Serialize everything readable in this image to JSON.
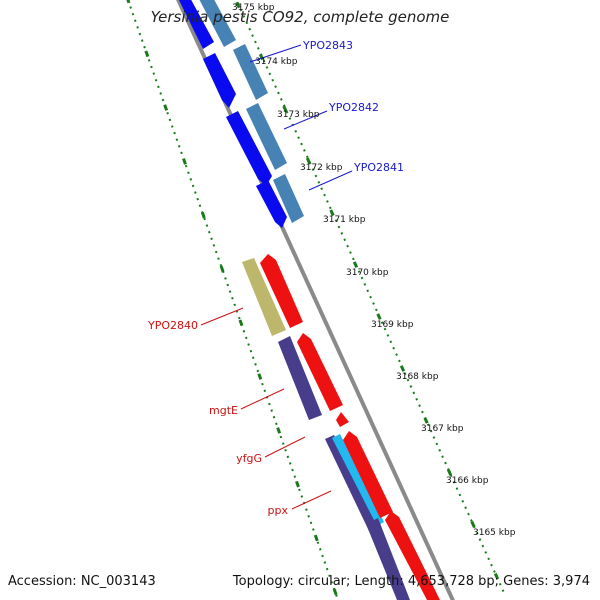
{
  "title": "Yersinia pestis CO92, complete genome",
  "accession": "Accession: NC_003143",
  "summary": "Topology: circular; Length: 4,653,728 bp; Genes: 3,974",
  "colors": {
    "backbone": "#8a8a8a",
    "tick_marks": "#1a7a1a",
    "forward_cds_blue": "#0a0af0",
    "forward_gene_steel": "#4682b4",
    "reverse_cds_red": "#ee1111",
    "reverse_gene_olive": "#bdb76b",
    "reverse_gene_slate": "#483d8b",
    "reverse_gene_cyan": "#22b8f0",
    "label_blue": "#1818cc",
    "label_red": "#cc1111"
  },
  "tick_labels": [
    "3175 kbp",
    "3174 kbp",
    "3173 kbp",
    "3172 kbp",
    "3171 kbp",
    "3170 kbp",
    "3169 kbp",
    "3168 kbp",
    "3167 kbp",
    "3166 kbp",
    "3165 kbp"
  ],
  "gene_labels_forward": [
    "YPO2843",
    "YPO2842",
    "YPO2841"
  ],
  "gene_labels_reverse": [
    "YPO2840",
    "mgtE",
    "yfgG",
    "ppx"
  ]
}
